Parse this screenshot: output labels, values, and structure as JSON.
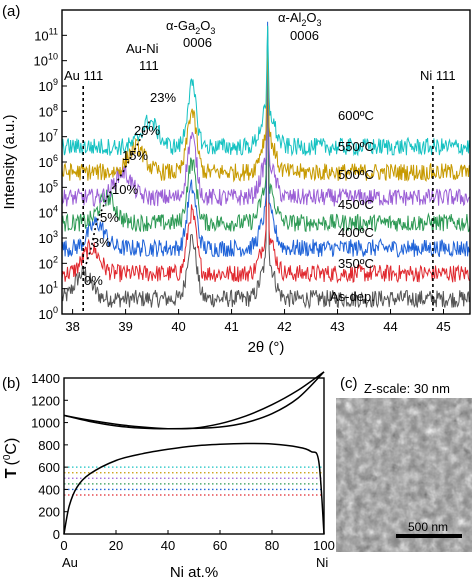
{
  "figure": {
    "panel_a_label": "(a)",
    "panel_b_label": "(b)",
    "panel_c_label": "(c)"
  },
  "panel_a": {
    "ylabel": "Intensity (a.u.)",
    "xlabel": "2θ (°)",
    "peak_labels": {
      "ga2o3_line1": "α-Ga",
      "ga2o3_sub": "2",
      "ga2o3_o": "O",
      "ga2o3_sub2": "3",
      "ga2o3_line2": "0006",
      "al2o3_line1": "α-Al",
      "al2o3_sub": "2",
      "al2o3_o": "O",
      "al2o3_sub2": "3",
      "al2o3_line2": "0006",
      "auni_line1": "Au-Ni",
      "auni_line2": "111",
      "au111": "Au 111",
      "ni111": "Ni 111"
    },
    "percent_labels": [
      "0%",
      "3%",
      "5%",
      "10%",
      "15%",
      "20%",
      "23%"
    ],
    "temperature_labels": [
      "As-dep.",
      "350ºC",
      "400ºC",
      "450ºC",
      "500ºC",
      "550ºC",
      "600ºC"
    ]
  },
  "panel_b": {
    "ylabel_t": "T",
    "ylabel_unit": "(",
    "ylabel_deg": "0",
    "ylabel_c": "C)",
    "xlabel": "Ni at.%",
    "x_end_left": "Au",
    "x_end_right": "Ni"
  },
  "panel_c": {
    "zscale": "Z-scale: 30 nm",
    "scalebar": "500 nm"
  },
  "chart_data": [
    {
      "type": "line",
      "panel": "a",
      "xlabel": "2θ (°)",
      "ylabel": "Intensity (a.u.)",
      "xlim": [
        37.8,
        45.5
      ],
      "ylim_log10": [
        0,
        12
      ],
      "y_scale": "log",
      "x_ticks": [
        38,
        39,
        40,
        41,
        42,
        43,
        44,
        45
      ],
      "y_ticks_exponent": [
        0,
        1,
        2,
        3,
        4,
        5,
        6,
        7,
        8,
        9,
        10,
        11
      ],
      "reference_lines_2theta": [
        38.2,
        44.8
      ],
      "series": [
        {
          "name": "As-dep.",
          "color": "#555555",
          "baseline_log10": 0.6,
          "auni_peak_2theta": 38.2,
          "auni_percent": "0%"
        },
        {
          "name": "350ºC",
          "color": "#e0282e",
          "baseline_log10": 1.6,
          "auni_peak_2theta": 38.35,
          "auni_percent": "3%"
        },
        {
          "name": "400ºC",
          "color": "#1f63d8",
          "baseline_log10": 2.6,
          "auni_peak_2theta": 38.45,
          "auni_percent": "5%"
        },
        {
          "name": "450ºC",
          "color": "#2e9a55",
          "baseline_log10": 3.6,
          "auni_peak_2theta": 38.65,
          "auni_percent": "10%"
        },
        {
          "name": "500ºC",
          "color": "#9b5fd6",
          "baseline_log10": 4.6,
          "auni_peak_2theta": 38.95,
          "auni_percent": "15%"
        },
        {
          "name": "550ºC",
          "color": "#c79a00",
          "baseline_log10": 5.6,
          "auni_peak_2theta": 39.2,
          "auni_percent": "20%"
        },
        {
          "name": "600ºC",
          "color": "#16c2c2",
          "baseline_log10": 6.6,
          "auni_peak_2theta": 39.45,
          "auni_percent": "23%"
        }
      ],
      "ga2o3_peak_2theta": 40.25,
      "al2o3_peak_2theta": 41.68
    },
    {
      "type": "line",
      "panel": "b",
      "xlabel": "Ni at.%",
      "ylabel": "T (0C)",
      "xlim": [
        0,
        100
      ],
      "ylim": [
        0,
        1400
      ],
      "x_ticks": [
        0,
        20,
        40,
        60,
        80,
        100
      ],
      "y_ticks": [
        0,
        200,
        400,
        600,
        800,
        1000,
        1200,
        1400
      ],
      "series": [
        {
          "name": "liquidus",
          "x": [
            0,
            10,
            20,
            30,
            40,
            50,
            60,
            70,
            80,
            90,
            100
          ],
          "y": [
            1064,
            1020,
            985,
            960,
            945,
            950,
            990,
            1060,
            1160,
            1290,
            1455
          ]
        },
        {
          "name": "solidus",
          "x": [
            0,
            10,
            20,
            30,
            40,
            50,
            60,
            70,
            80,
            90,
            100
          ],
          "y": [
            1064,
            1010,
            970,
            950,
            945,
            948,
            960,
            1000,
            1080,
            1220,
            1455
          ]
        },
        {
          "name": "miscibility gap",
          "x": [
            0,
            2,
            5,
            10,
            20,
            30,
            40,
            50,
            60,
            70,
            80,
            90,
            95,
            98,
            100
          ],
          "y": [
            0,
            250,
            420,
            540,
            660,
            720,
            760,
            790,
            805,
            812,
            808,
            780,
            740,
            650,
            0
          ]
        }
      ],
      "dotted_levels": [
        {
          "y": 350,
          "color": "#e0282e"
        },
        {
          "y": 400,
          "color": "#1f63d8"
        },
        {
          "y": 450,
          "color": "#2e9a55"
        },
        {
          "y": 500,
          "color": "#9b5fd6"
        },
        {
          "y": 550,
          "color": "#c79a00"
        },
        {
          "y": 600,
          "color": "#16c2c2"
        }
      ]
    }
  ]
}
